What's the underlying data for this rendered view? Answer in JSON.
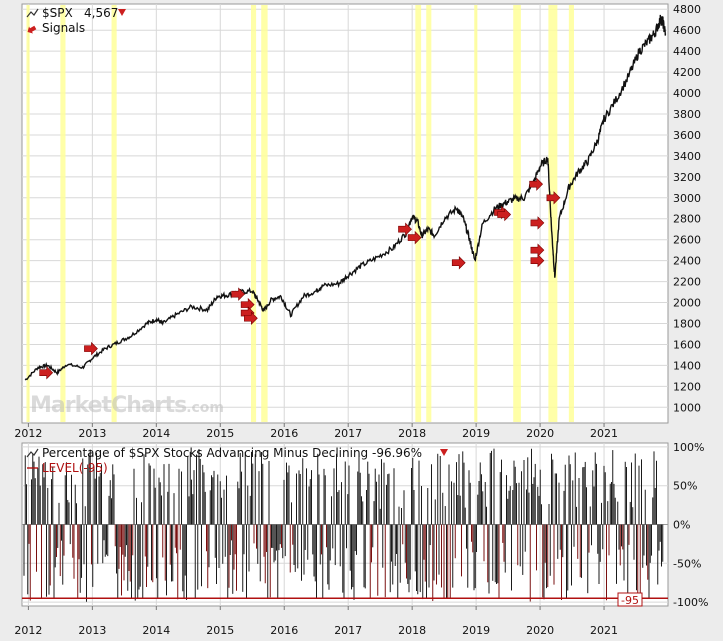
{
  "chart_data": [
    {
      "type": "line",
      "title_symbol": "$SPX",
      "title_value": "4,567",
      "signals_label": "Signals",
      "watermark": "MarketCharts",
      "watermark_suffix": ".com",
      "x_ticks": [
        "2012",
        "2013",
        "2014",
        "2015",
        "2016",
        "2017",
        "2018",
        "2019",
        "2020",
        "2021"
      ],
      "y_ticks": [
        1000,
        1200,
        1400,
        1600,
        1800,
        2000,
        2200,
        2400,
        2600,
        2800,
        3000,
        3200,
        3400,
        3600,
        3800,
        4000,
        4200,
        4400,
        4600,
        4800
      ],
      "ylim": [
        850,
        4850
      ],
      "xlim": [
        2011.9,
        2022.0
      ],
      "series": [
        {
          "x": [
            2011.95,
            2012.15,
            2012.3,
            2012.45,
            2012.6,
            2012.85,
            2013.0,
            2013.2,
            2013.4,
            2013.6,
            2013.85,
            2014.0,
            2014.1,
            2014.3,
            2014.55,
            2014.8,
            2014.95,
            2015.1,
            2015.3,
            2015.5,
            2015.6,
            2015.68,
            2015.8,
            2015.95,
            2016.1,
            2016.3,
            2016.5,
            2016.6,
            2016.85,
            2017.0,
            2017.2,
            2017.45,
            2017.7,
            2017.9,
            2018.0,
            2018.08,
            2018.15,
            2018.25,
            2018.35,
            2018.5,
            2018.7,
            2018.8,
            2018.9,
            2018.98,
            2019.1,
            2019.3,
            2019.45,
            2019.6,
            2019.75,
            2019.9,
            2020.0,
            2020.12,
            2020.18,
            2020.23,
            2020.3,
            2020.45,
            2020.6,
            2020.75,
            2020.9,
            2021.0,
            2021.2,
            2021.4,
            2021.55,
            2021.7,
            2021.8,
            2021.88,
            2021.92,
            2021.96
          ],
          "values": [
            1260,
            1380,
            1400,
            1330,
            1410,
            1380,
            1470,
            1560,
            1620,
            1680,
            1800,
            1840,
            1800,
            1880,
            1960,
            1930,
            2060,
            2070,
            2100,
            2110,
            2010,
            1920,
            2030,
            2060,
            1880,
            2060,
            2110,
            2160,
            2180,
            2260,
            2350,
            2430,
            2520,
            2660,
            2820,
            2780,
            2640,
            2700,
            2640,
            2800,
            2900,
            2800,
            2600,
            2400,
            2750,
            2900,
            2950,
            2990,
            3000,
            3150,
            3300,
            3380,
            2700,
            2240,
            2800,
            3100,
            3250,
            3350,
            3550,
            3750,
            3950,
            4180,
            4400,
            4500,
            4580,
            4700,
            4680,
            4567
          ]
        }
      ],
      "highlight_bands": [
        [
          2011.97,
          2012.02
        ],
        [
          2012.5,
          2012.58
        ],
        [
          2013.3,
          2013.38
        ],
        [
          2015.48,
          2015.56
        ],
        [
          2015.64,
          2015.74
        ],
        [
          2018.05,
          2018.14
        ],
        [
          2018.22,
          2018.3
        ],
        [
          2018.97,
          2019.02
        ],
        [
          2019.58,
          2019.7
        ],
        [
          2020.13,
          2020.27
        ],
        [
          2020.45,
          2020.53
        ]
      ],
      "signals": [
        {
          "x": 2012.27,
          "y": 1330
        },
        {
          "x": 2012.97,
          "y": 1560
        },
        {
          "x": 2015.27,
          "y": 2080
        },
        {
          "x": 2015.42,
          "y": 1980
        },
        {
          "x": 2015.42,
          "y": 1900
        },
        {
          "x": 2015.47,
          "y": 1850
        },
        {
          "x": 2017.88,
          "y": 2700
        },
        {
          "x": 2018.03,
          "y": 2620
        },
        {
          "x": 2018.72,
          "y": 2380
        },
        {
          "x": 2019.38,
          "y": 2860
        },
        {
          "x": 2019.43,
          "y": 2840
        },
        {
          "x": 2019.93,
          "y": 3130
        },
        {
          "x": 2019.95,
          "y": 2760
        },
        {
          "x": 2019.95,
          "y": 2500
        },
        {
          "x": 2019.95,
          "y": 2400
        },
        {
          "x": 2020.2,
          "y": 3000
        }
      ]
    },
    {
      "type": "bar",
      "title_prefix": "Percentage of $SPX Stocks Advancing Minus Declining",
      "title_value": "-96.96%",
      "level_label": "LEVEL(-95)",
      "level_tag": "-95",
      "level_value": -95,
      "x_ticks": [
        "2012",
        "2013",
        "2014",
        "2015",
        "2016",
        "2017",
        "2018",
        "2019",
        "2020",
        "2021"
      ],
      "y_ticks": [
        "100%",
        "50%",
        "0%",
        "-50%",
        "-100%"
      ],
      "y_tick_values": [
        100,
        50,
        0,
        -50,
        -100
      ],
      "ylim": [
        -105,
        105
      ],
      "xlim": [
        2011.9,
        2022.0
      ]
    }
  ],
  "colors": {
    "price_line": "#111111",
    "highlight": "#ffff99",
    "signal_arrow": "#cc1f1f",
    "level_line": "#b01010",
    "bar_black": "#1a1a1a",
    "bar_red": "#7a1010"
  }
}
